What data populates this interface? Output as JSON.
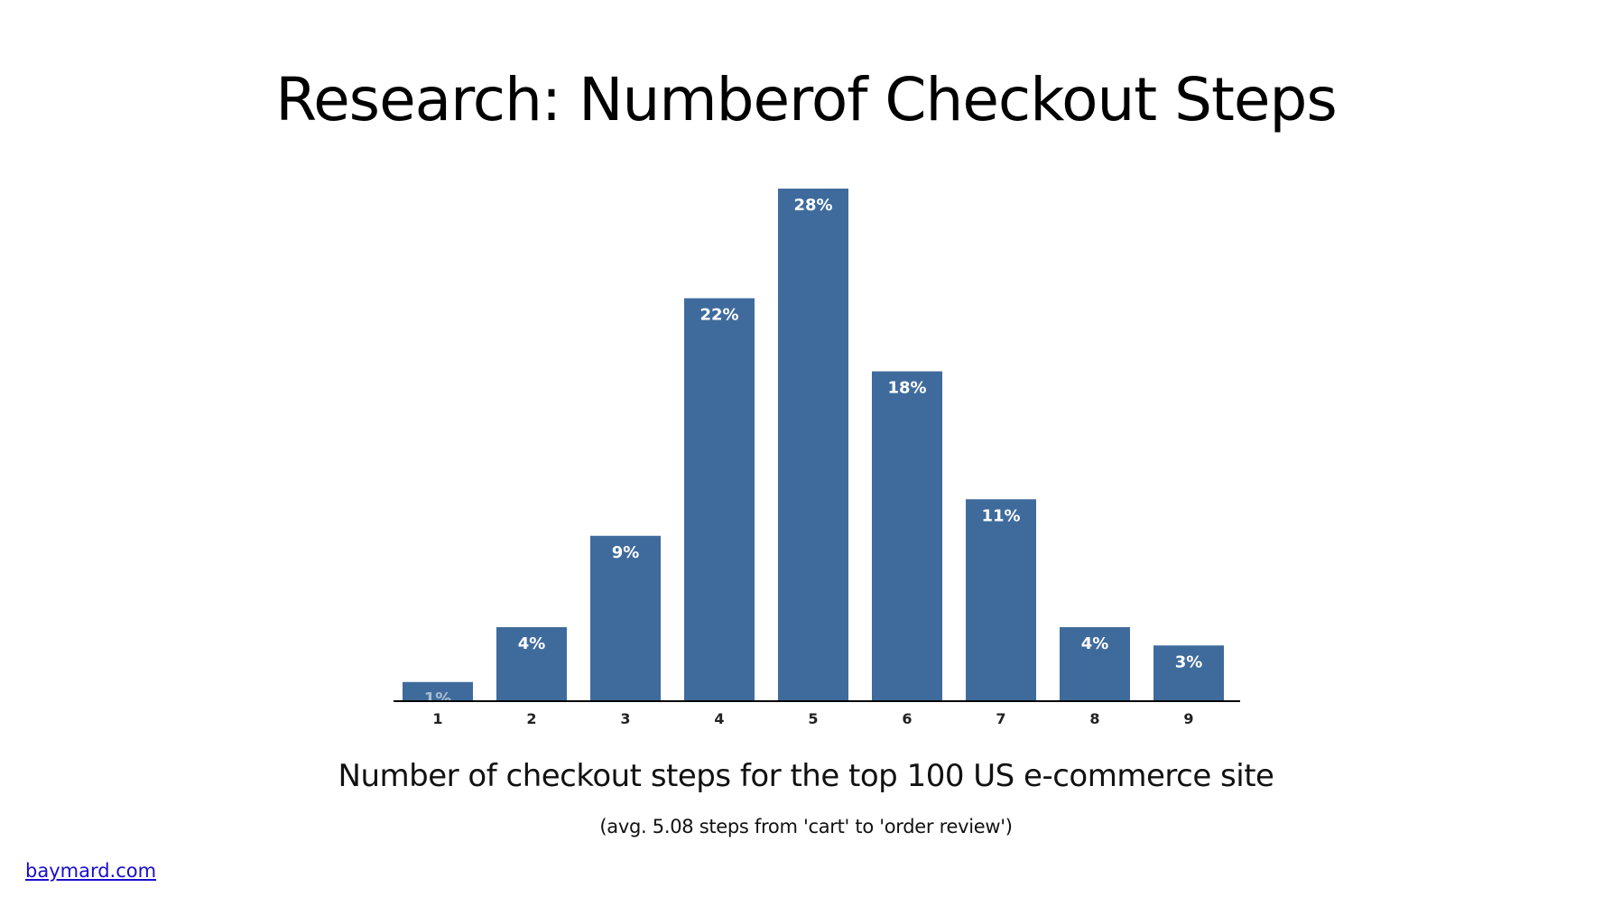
{
  "slide": {
    "title": "Research: Numberof Checkout Steps",
    "caption": "Number of checkout steps for the top 100 US e-commerce site",
    "subcaption": "(avg. 5.08 steps from 'cart' to 'order review')",
    "source_link": "baymard.com"
  },
  "colors": {
    "bar": "#3f6b9c",
    "axis": "#000000",
    "link": "#1a0dcc"
  },
  "chart_data": {
    "type": "bar",
    "title": "",
    "xlabel": "",
    "ylabel": "",
    "categories": [
      "1",
      "2",
      "3",
      "4",
      "5",
      "6",
      "7",
      "8",
      "9"
    ],
    "values": [
      1,
      4,
      9,
      22,
      28,
      18,
      11,
      4,
      3
    ],
    "data_labels": [
      "1%",
      "4%",
      "9%",
      "22%",
      "28%",
      "18%",
      "11%",
      "4%",
      "3%"
    ],
    "unit": "%",
    "ylim": [
      0,
      28
    ],
    "grid": false,
    "legend": "none"
  }
}
